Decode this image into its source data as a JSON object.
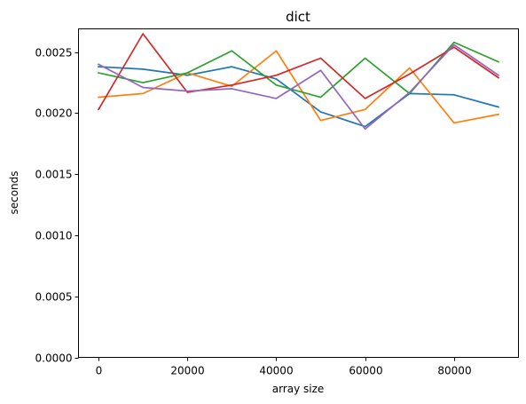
{
  "chart_data": {
    "type": "line",
    "title": "dict",
    "xlabel": "array size",
    "ylabel": "seconds",
    "xlim": [
      -4500,
      94500
    ],
    "ylim": [
      0,
      0.00269
    ],
    "grid": false,
    "x": [
      0,
      10000,
      20000,
      30000,
      40000,
      50000,
      60000,
      70000,
      80000,
      90000
    ],
    "x_ticks": [
      0,
      20000,
      40000,
      60000,
      80000
    ],
    "x_tick_labels": [
      "0",
      "20000",
      "40000",
      "60000",
      "80000"
    ],
    "y_ticks": [
      0,
      0.0005,
      0.001,
      0.0015,
      0.002,
      0.0025
    ],
    "y_tick_labels": [
      "0.0000",
      "0.0005",
      "0.0010",
      "0.0015",
      "0.0020",
      "0.0025"
    ],
    "series": [
      {
        "color": "#1f77b4",
        "values": [
          0.00238,
          0.00236,
          0.00231,
          0.00238,
          0.00228,
          0.00201,
          0.00189,
          0.00216,
          0.00215,
          0.00205
        ]
      },
      {
        "color": "#ff7f0e",
        "values": [
          0.00213,
          0.00216,
          0.00233,
          0.00222,
          0.00251,
          0.00194,
          0.00203,
          0.00237,
          0.00192,
          0.00199
        ]
      },
      {
        "color": "#2ca02c",
        "values": [
          0.00233,
          0.00225,
          0.00233,
          0.00251,
          0.00223,
          0.00213,
          0.00245,
          0.00216,
          0.00258,
          0.00242
        ]
      },
      {
        "color": "#d62728",
        "values": [
          0.00203,
          0.00265,
          0.00217,
          0.00223,
          0.00231,
          0.00245,
          0.00212,
          0.00232,
          0.00254,
          0.00229
        ]
      },
      {
        "color": "#9467bd",
        "values": [
          0.0024,
          0.00221,
          0.00218,
          0.0022,
          0.00212,
          0.00235,
          0.00187,
          0.00217,
          0.00256,
          0.00231
        ]
      }
    ]
  }
}
